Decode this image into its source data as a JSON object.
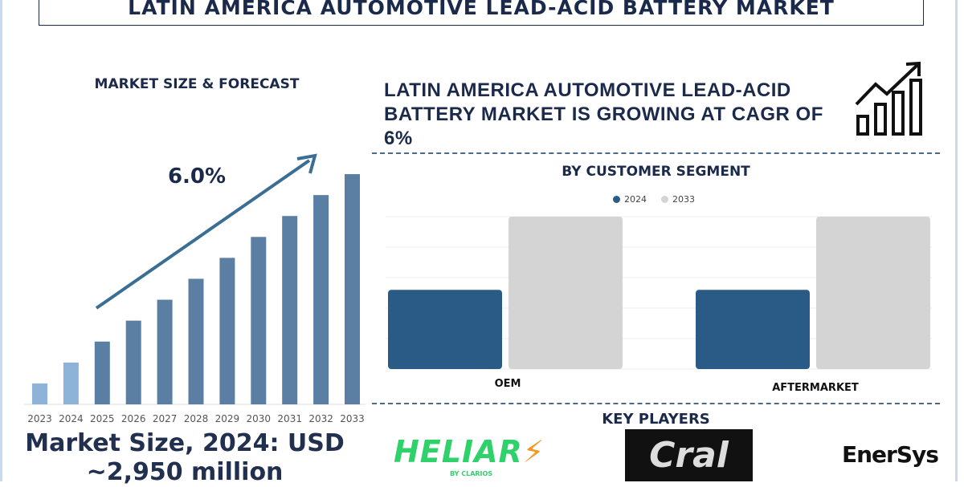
{
  "title": "LATIN AMERICA AUTOMOTIVE LEAD-ACID BATTERY MARKET",
  "left_heading": "MARKET SIZE & FORECAST",
  "market_size_text": "Market Size, 2024: USD ~2,950 million",
  "cagr_heading": "LATIN AMERICA AUTOMOTIVE LEAD-ACID BATTERY MARKET IS GROWING AT CAGR OF 6%",
  "segment_heading": "BY CUSTOMER SEGMENT",
  "key_players_heading": "KEY PLAYERS",
  "key_players": [
    "HELIAR",
    "BY CLARIOS",
    "Cral",
    "EnerSys"
  ],
  "colors": {
    "navy": "#1b2a4a",
    "bar_hist": "#8db3d9",
    "bar_fore": "#5b7fa3",
    "seg_2024": "#2a5b86",
    "seg_2033": "#d4d4d4",
    "heliar": "#2fd26a"
  },
  "chart_data": [
    {
      "type": "bar",
      "title": "MARKET SIZE & FORECAST",
      "annotation": "6.0%",
      "categories": [
        "2023",
        "2024",
        "2025",
        "2026",
        "2027",
        "2028",
        "2029",
        "2030",
        "2031",
        "2032",
        "2033"
      ],
      "values": [
        1,
        2,
        3,
        4,
        5,
        6,
        7,
        8,
        9,
        10,
        11
      ],
      "ylim": [
        0,
        11.5
      ],
      "xlabel": "",
      "ylabel": ""
    },
    {
      "type": "bar",
      "title": "BY CUSTOMER SEGMENT",
      "categories": [
        "OEM",
        "AFTERMARKET"
      ],
      "series": [
        {
          "name": "2024",
          "values": [
            52,
            52
          ]
        },
        {
          "name": "2033",
          "values": [
            100,
            100
          ]
        }
      ],
      "ylim": [
        0,
        100
      ],
      "legend": "top-center",
      "grid": true
    }
  ]
}
